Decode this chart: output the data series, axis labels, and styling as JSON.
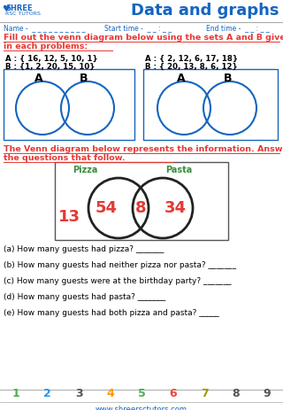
{
  "title": "Data and graphs",
  "name_label": "Name -  _ _ _ _ _ _ _ _ _ _",
  "start_time": "Start time -  _ _ : _ _",
  "end_time": "End time -  _ _ : _ _",
  "instruction1_line1": "Fill out the venn diagram below using the sets A and B given",
  "instruction1_line2": "in each problems:",
  "set1_A": "A : { 16, 12, 5, 10, 1}",
  "set1_B": "B : {1, 2, 20, 15, 10}",
  "set2_A": "A : { 2, 12, 6, 17, 18}",
  "set2_B": "B : { 20, 13, 8, 6, 12}",
  "instruction2_line1": "The Venn diagram below represents the information. Answer",
  "instruction2_line2": "the questions that follow.",
  "pizza_label": "Pizza",
  "pasta_label": "Pasta",
  "venn_num1": "54",
  "venn_num2": "8",
  "venn_num3": "34",
  "venn_num4": "13",
  "questions": [
    "(a) How many guests had pizza? _______",
    "(b) How many guests had neither pizza nor pasta? _______",
    "(c) How many guests were at the birthday party? _______",
    "(d) How many guests had pasta? _______",
    "(e) How many guests had both pizza and pasta? _____"
  ],
  "number_row": [
    "1",
    "2",
    "3",
    "4",
    "5",
    "6",
    "7",
    "8",
    "9"
  ],
  "number_colors": [
    "#4CAF50",
    "#2196F3",
    "#555555",
    "#FF9800",
    "#4CAF50",
    "#F44336",
    "#9C9C00",
    "#555555",
    "#555555"
  ],
  "website": "www.shreersctutors.com",
  "title_color": "#1565C0",
  "red_color": "#E53935",
  "green_color": "#388E3C",
  "blue_venn": "#1565C0"
}
